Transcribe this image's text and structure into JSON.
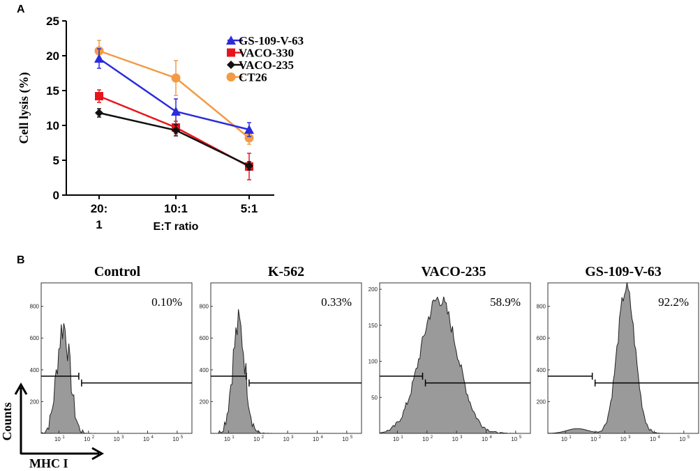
{
  "panel_a_letter": "A",
  "panel_b_letter": "B",
  "chart_data": [
    {
      "type": "line",
      "ylabel": "Cell lysis (%)",
      "xlabel": "E:T ratio",
      "categories": [
        "20:1",
        "10:1",
        "5:1"
      ],
      "category_labels": [
        [
          "20:",
          "1"
        ],
        [
          "10:1"
        ],
        [
          "5:1"
        ]
      ],
      "ylim": [
        0,
        25
      ],
      "yticks": [
        0,
        5,
        10,
        15,
        20,
        25
      ],
      "legend_position": "top-right",
      "series": [
        {
          "name": "GS-109-V-63",
          "color": "#2b2bdb",
          "marker": "triangle",
          "values": [
            19.6,
            12.0,
            9.4
          ],
          "errors": [
            1.4,
            1.8,
            1.0
          ]
        },
        {
          "name": "VACO-330",
          "color": "#e8141c",
          "marker": "square",
          "values": [
            14.2,
            9.7,
            4.1
          ],
          "errors": [
            0.9,
            0.9,
            1.9
          ]
        },
        {
          "name": "VACO-235",
          "color": "#111111",
          "marker": "diamond",
          "values": [
            11.8,
            9.3,
            4.2
          ],
          "errors": [
            0.6,
            0.8,
            0.6
          ]
        },
        {
          "name": "CT26",
          "color": "#f39a45",
          "marker": "circle",
          "values": [
            20.7,
            16.8,
            8.2
          ],
          "errors": [
            1.5,
            2.5,
            0.9
          ]
        }
      ]
    },
    {
      "type": "histogram",
      "xaxis_label": "MHC I",
      "yaxis_label": "Counts",
      "x_ticks": [
        "10",
        "10",
        "10",
        "10",
        "10"
      ],
      "x_tick_exponents": [
        "1",
        "2",
        "3",
        "4",
        "5"
      ],
      "panels": [
        {
          "title": "Control",
          "percent": "0.10%",
          "yticks": [
            "800",
            "600",
            "400",
            "200"
          ],
          "ymax": 930,
          "peak_log": 1.15,
          "peak_height": 680,
          "sigma": 0.22,
          "gate_log": 1.72
        },
        {
          "title": "K-562",
          "percent": "0.33%",
          "yticks": [
            "800",
            "600",
            "400",
            "200"
          ],
          "ymax": 930,
          "peak_log": 1.35,
          "peak_height": 680,
          "sigma": 0.22,
          "gate_log": 1.65
        },
        {
          "title": "VACO-235",
          "percent": "58.9%",
          "yticks": [
            "200",
            "150",
            "100",
            "50"
          ],
          "ymax": 205,
          "peak_log": 2.4,
          "peak_height": 187,
          "sigma": 0.62,
          "gate_log": 1.9
        },
        {
          "title": "GS-109-V-63",
          "percent": "92.2%",
          "yticks": [
            "800",
            "600",
            "400",
            "200"
          ],
          "ymax": 930,
          "peak_log": 3.05,
          "peak_height": 910,
          "sigma": 0.3,
          "gate_log": 1.95
        }
      ]
    }
  ]
}
